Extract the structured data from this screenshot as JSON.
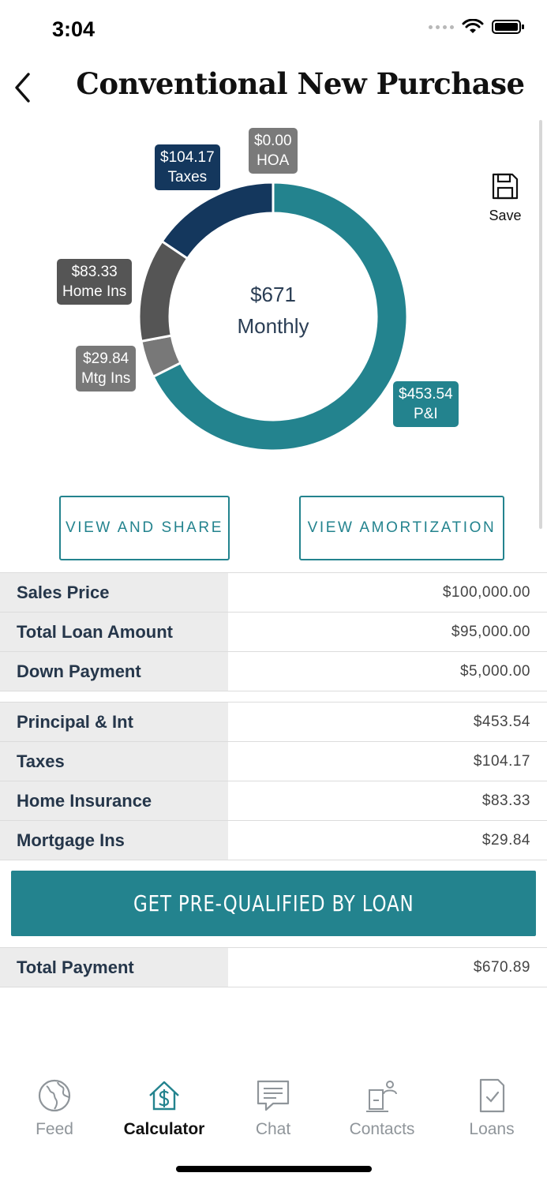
{
  "status": {
    "time": "3:04"
  },
  "header": {
    "title": "Conventional New Purchase"
  },
  "chart_data": {
    "type": "pie",
    "variant": "donut",
    "center": {
      "amount": "$671",
      "label": "Monthly"
    },
    "slices": [
      {
        "name": "P&I",
        "display": "$453.54",
        "value": 453.54,
        "color": "#23838e"
      },
      {
        "name": "Mtg Ins",
        "display": "$29.84",
        "value": 29.84,
        "color": "#787878"
      },
      {
        "name": "Home Ins",
        "display": "$83.33",
        "value": 83.33,
        "color": "#555555"
      },
      {
        "name": "Taxes",
        "display": "$104.17",
        "value": 104.17,
        "color": "#14375d"
      },
      {
        "name": "HOA",
        "display": "$0.00",
        "value": 0.0,
        "color": "#7a7a7a"
      }
    ]
  },
  "save": {
    "label": "Save"
  },
  "buttons": {
    "view_share": "VIEW AND SHARE",
    "view_amortization": "VIEW AMORTIZATION"
  },
  "loan_rows": [
    {
      "label": "Sales Price",
      "value": "$100,000.00"
    },
    {
      "label": "Total Loan Amount",
      "value": "$95,000.00"
    },
    {
      "label": "Down Payment",
      "value": "$5,000.00"
    }
  ],
  "payment_rows": [
    {
      "label": "Principal & Int",
      "value": "$453.54"
    },
    {
      "label": "Taxes",
      "value": "$104.17"
    },
    {
      "label": "Home Insurance",
      "value": "$83.33"
    },
    {
      "label": "Mortgage Ins",
      "value": "$29.84"
    }
  ],
  "cta": {
    "label": "GET PRE-QUALIFIED BY LOAN"
  },
  "total": {
    "label": "Total Payment",
    "value": "$670.89"
  },
  "tabs": [
    {
      "label": "Feed",
      "icon": "globe-icon"
    },
    {
      "label": "Calculator",
      "icon": "house-dollar-icon"
    },
    {
      "label": "Chat",
      "icon": "chat-icon"
    },
    {
      "label": "Contacts",
      "icon": "contacts-icon"
    },
    {
      "label": "Loans",
      "icon": "document-check-icon"
    }
  ]
}
